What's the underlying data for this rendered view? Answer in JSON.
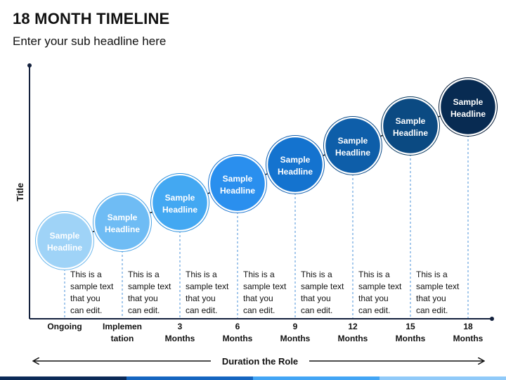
{
  "page": {
    "title": "18 MONTH TIMELINE",
    "subtitle": "Enter your sub headline here"
  },
  "axis": {
    "y_title": "Title",
    "x_title": "Duration the Role"
  },
  "milestones": [
    {
      "headline": [
        "Sample",
        "Headline"
      ],
      "period": [
        "Ongoing"
      ],
      "text": [
        "This is a",
        "sample text",
        "that you",
        "can edit."
      ],
      "color": "#9fd3f7",
      "stroke": "#6db8ec"
    },
    {
      "headline": [
        "Sample",
        "Headline"
      ],
      "period": [
        "Implemen",
        "tation"
      ],
      "text": [
        "This is a",
        "sample text",
        "that you",
        "can edit."
      ],
      "color": "#6fbcf4",
      "stroke": "#4aa3e6"
    },
    {
      "headline": [
        "Sample",
        "Headline"
      ],
      "period": [
        "3",
        "Months"
      ],
      "text": [
        "This is a",
        "sample text",
        "that you",
        "can edit."
      ],
      "color": "#43a8f2",
      "stroke": "#2a8fdc"
    },
    {
      "headline": [
        "Sample",
        "Headline"
      ],
      "period": [
        "6",
        "Months"
      ],
      "text": [
        "This is a",
        "sample text",
        "that you",
        "can edit."
      ],
      "color": "#2a8fee",
      "stroke": "#1c75d0"
    },
    {
      "headline": [
        "Sample",
        "Headline"
      ],
      "period": [
        "9",
        "Months"
      ],
      "text": [
        "This is a",
        "sample text",
        "that you",
        "can edit."
      ],
      "color": "#1473cf",
      "stroke": "#0f5eaf"
    },
    {
      "headline": [
        "Sample",
        "Headline"
      ],
      "period": [
        "12",
        "Months"
      ],
      "text": [
        "This is a",
        "sample text",
        "that you",
        "can edit."
      ],
      "color": "#0e5ea9",
      "stroke": "#0a4a88"
    },
    {
      "headline": [
        "Sample",
        "Headline"
      ],
      "period": [
        "15",
        "Months"
      ],
      "text": [
        "This is a",
        "sample text",
        "that you",
        "can edit."
      ],
      "color": "#0b4a82",
      "stroke": "#08395f"
    },
    {
      "headline": [
        "Sample",
        "Headline"
      ],
      "period": [
        "18",
        "Months"
      ],
      "text": [],
      "color": "#082b52",
      "stroke": "#051c38"
    }
  ],
  "colors": {
    "axis": "#14213d",
    "connector": "#111111",
    "dashed": "#4a90d9",
    "bottom_bar": [
      "#0b2a57",
      "#1565c0",
      "#42a5f5",
      "#90caf9"
    ]
  }
}
